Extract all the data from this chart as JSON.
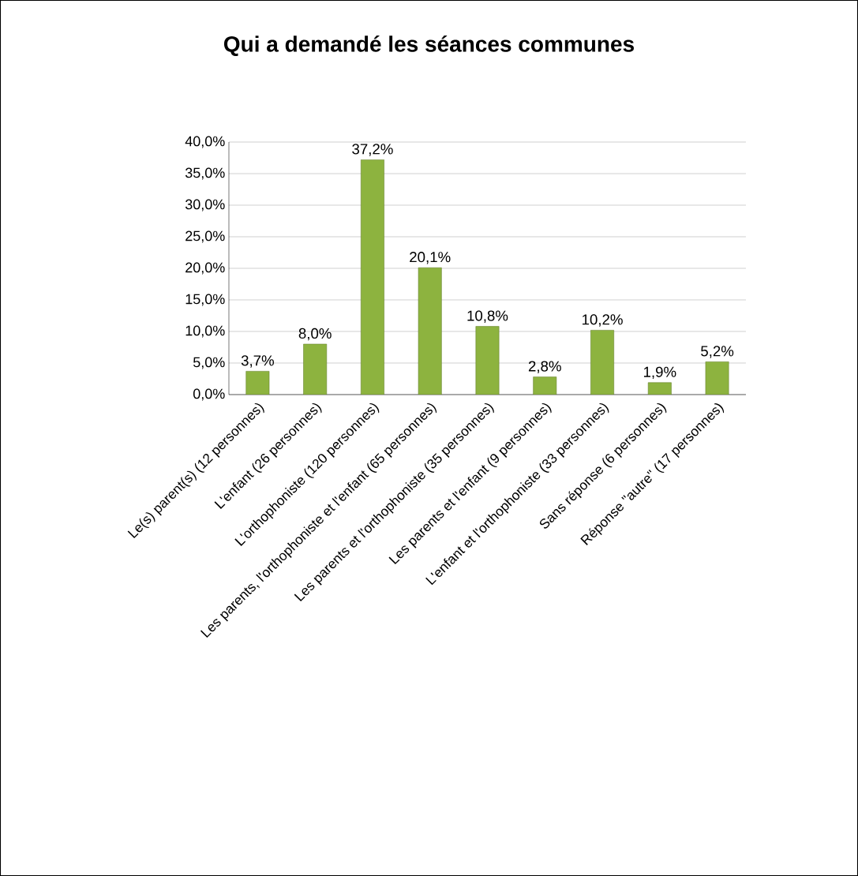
{
  "chart_data": {
    "type": "bar",
    "title": "Qui a demandé les séances communes",
    "categories": [
      "Le(s) parent(s) (12 personnes)",
      "L'enfant (26 personnes)",
      "L'orthophoniste (120 personnes)",
      "Les parents, l'orthophoniste et l'enfant (65 personnes)",
      "Les parents et l'orthophoniste (35 personnes)",
      "Les parents et l'enfant (9 personnes)",
      "L'enfant et l'orthophoniste (33 personnes)",
      "Sans réponse (6 personnes)",
      "Réponse \"autre\" (17 personnes)"
    ],
    "values": [
      3.7,
      8.0,
      37.2,
      20.1,
      10.8,
      2.8,
      10.2,
      1.9,
      5.2
    ],
    "value_labels": [
      "3,7%",
      "8,0%",
      "37,2%",
      "20,1%",
      "10,8%",
      "2,8%",
      "10,2%",
      "1,9%",
      "5,2%"
    ],
    "color": "#8db33f",
    "ylim": [
      0,
      40
    ],
    "yticks": [
      {
        "value": 0,
        "label": "0,0%"
      },
      {
        "value": 5,
        "label": "5,0%"
      },
      {
        "value": 10,
        "label": "10,0%"
      },
      {
        "value": 15,
        "label": "15,0%"
      },
      {
        "value": 20,
        "label": "20,0%"
      },
      {
        "value": 25,
        "label": "25,0%"
      },
      {
        "value": 30,
        "label": "30,0%"
      },
      {
        "value": 35,
        "label": "35,0%"
      },
      {
        "value": 40,
        "label": "40,0%"
      }
    ],
    "grid": "y"
  }
}
